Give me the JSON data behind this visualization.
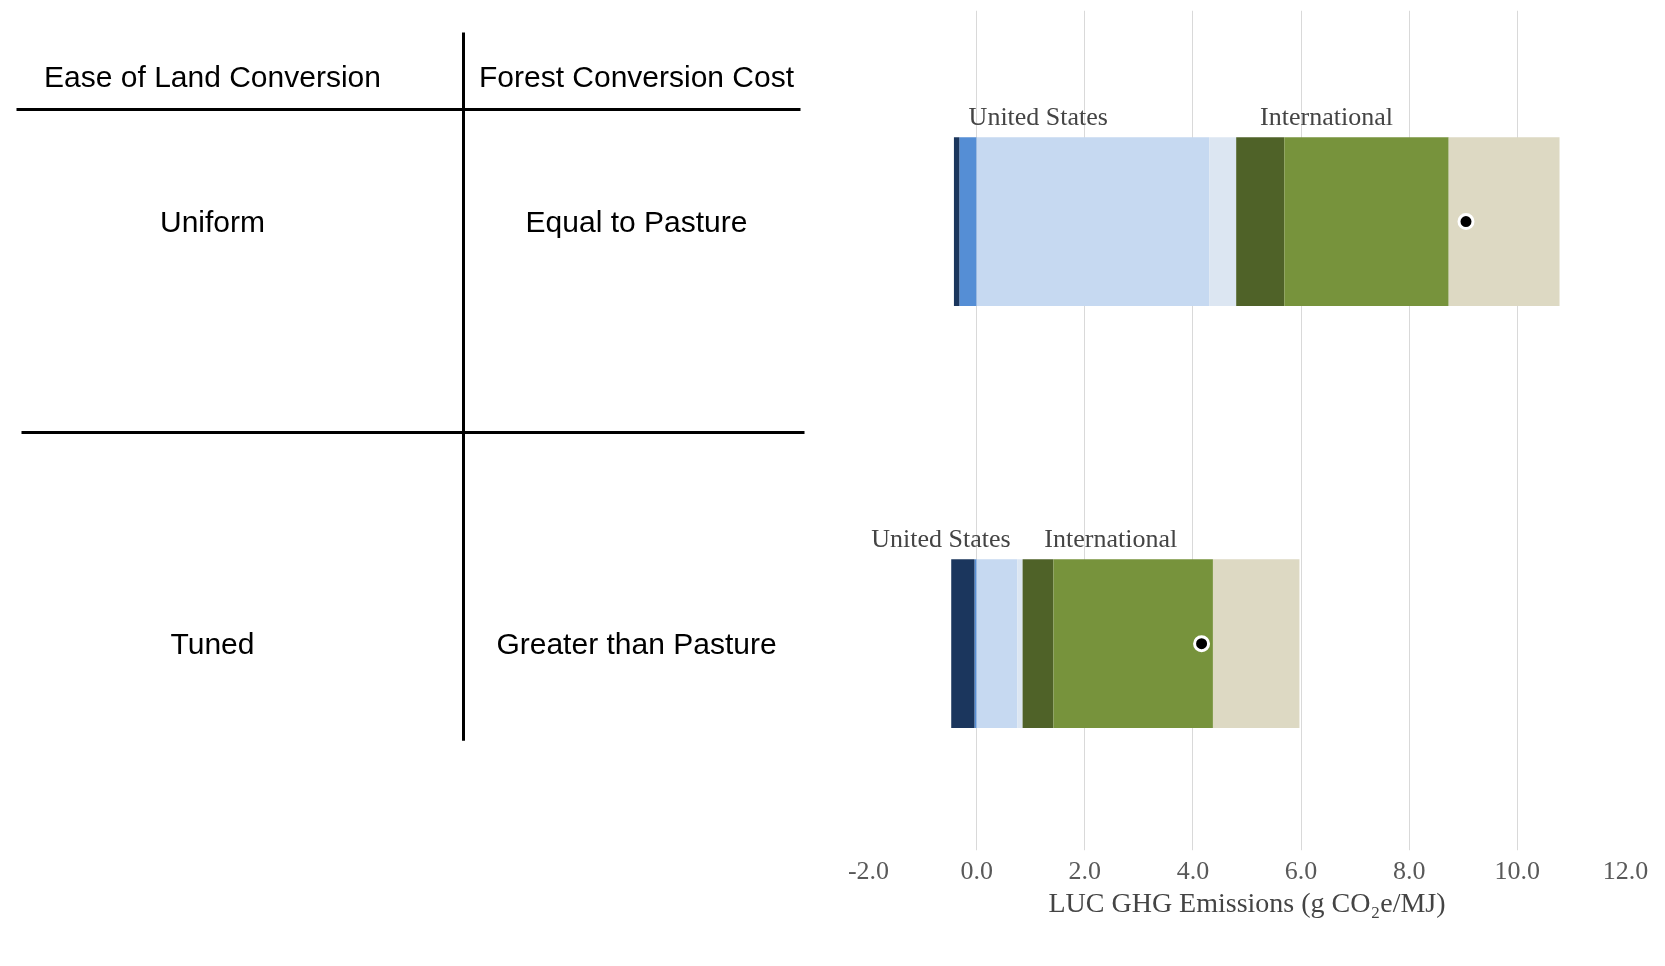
{
  "chart_data": {
    "type": "bar",
    "orientation": "horizontal",
    "stacked": true,
    "categories": [
      null,
      null
    ],
    "xlabel": "LUC GHG Emissions (g CO₂e/MJ)",
    "xlim": [
      -2,
      12
    ],
    "xticks": [
      {
        "value": -2,
        "label": "-2.0"
      },
      {
        "value": 0,
        "label": "0.0"
      },
      {
        "value": 2,
        "label": "2.0"
      },
      {
        "value": 4,
        "label": "4.0"
      },
      {
        "value": 6,
        "label": "6.0"
      },
      {
        "value": 8,
        "label": "8.0"
      },
      {
        "value": 10,
        "label": "10.0"
      },
      {
        "value": 12,
        "label": "12.0"
      }
    ],
    "grid": "x",
    "tick_labels": "x",
    "series": [
      {
        "color": "#558ed5",
        "values": [
          -0.32,
          -0.04
        ]
      },
      {
        "color": "#1b365d",
        "values": [
          -0.1,
          -0.43
        ]
      },
      {
        "color": "#c6d9f1",
        "values": [
          4.3,
          0.75
        ]
      },
      {
        "color": "#dce6f2",
        "values": [
          0.5,
          0.1
        ]
      },
      {
        "color": "#4f6228",
        "values": [
          0.89,
          0.57
        ]
      },
      {
        "color": "#77933c",
        "values": [
          3.04,
          2.95
        ]
      },
      {
        "color": "#ddd9c3",
        "values": [
          2.05,
          1.6
        ]
      },
      {
        "type": "scatter",
        "color": "#000000",
        "marker": "circle",
        "values": [
          9.05,
          4.16
        ]
      }
    ],
    "annotations": [
      "Ease of Land Conversion",
      "Forest Conversion Cost",
      "Uniform",
      "Equal to Pasture",
      "Tuned",
      "Greater than Pasture",
      "United States",
      "International",
      "United States",
      "International"
    ]
  }
}
